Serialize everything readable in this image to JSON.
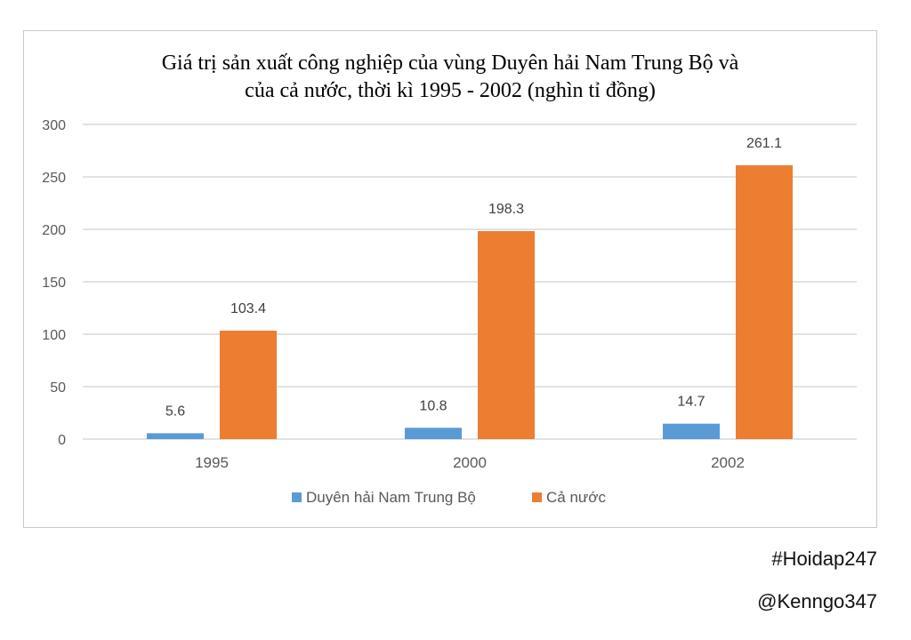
{
  "chart_data": {
    "type": "bar",
    "title_line1": "Giá trị sản xuất công nghiệp của vùng Duyên hải Nam Trung Bộ và",
    "title_line2": "của cả nước, thời kì 1995 - 2002 (nghìn tỉ đồng)",
    "categories": [
      "1995",
      "2000",
      "2002"
    ],
    "series": [
      {
        "name": "Duyên hải Nam Trung Bộ",
        "color": "#5b9bd5",
        "values": [
          5.6,
          10.8,
          14.7
        ]
      },
      {
        "name": "Cả nước",
        "color": "#ed7d31",
        "values": [
          103.4,
          198.3,
          261.1
        ]
      }
    ],
    "y_ticks": [
      "0",
      "50",
      "100",
      "150",
      "200",
      "250",
      "300"
    ],
    "ylim": [
      0,
      300
    ],
    "grid": true,
    "legend": "bottom"
  },
  "watermark": {
    "hashtag": "#Hoidap247",
    "handle": "@Kenngo347"
  }
}
